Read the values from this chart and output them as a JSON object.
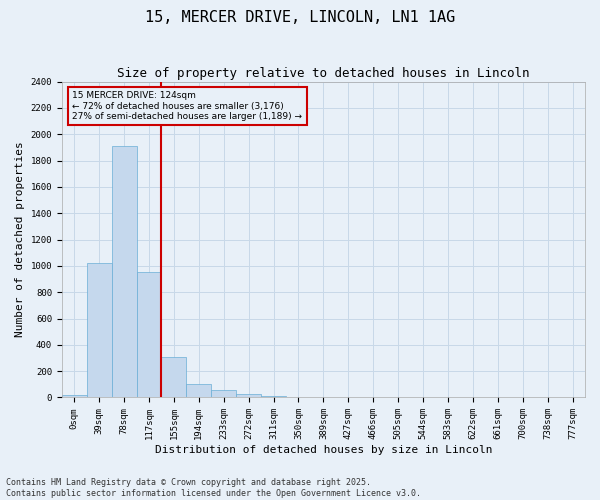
{
  "title": "15, MERCER DRIVE, LINCOLN, LN1 1AG",
  "subtitle": "Size of property relative to detached houses in Lincoln",
  "xlabel": "Distribution of detached houses by size in Lincoln",
  "ylabel": "Number of detached properties",
  "bar_labels": [
    "0sqm",
    "39sqm",
    "78sqm",
    "117sqm",
    "155sqm",
    "194sqm",
    "233sqm",
    "272sqm",
    "311sqm",
    "350sqm",
    "389sqm",
    "427sqm",
    "466sqm",
    "505sqm",
    "544sqm",
    "583sqm",
    "622sqm",
    "661sqm",
    "700sqm",
    "738sqm",
    "777sqm"
  ],
  "bar_values": [
    20,
    1020,
    1910,
    950,
    310,
    100,
    55,
    30,
    10,
    2,
    0,
    0,
    0,
    0,
    0,
    0,
    0,
    0,
    0,
    0,
    0
  ],
  "bar_color": "#c5d8ed",
  "bar_edge_color": "#6aaed6",
  "grid_color": "#c8d8e8",
  "background_color": "#e8f0f8",
  "vline_color": "#cc0000",
  "vline_pos": 3.5,
  "annotation_text": "15 MERCER DRIVE: 124sqm\n← 72% of detached houses are smaller (3,176)\n27% of semi-detached houses are larger (1,189) →",
  "annotation_box_color": "#cc0000",
  "ylim": [
    0,
    2400
  ],
  "yticks": [
    0,
    200,
    400,
    600,
    800,
    1000,
    1200,
    1400,
    1600,
    1800,
    2000,
    2200,
    2400
  ],
  "footer_line1": "Contains HM Land Registry data © Crown copyright and database right 2025.",
  "footer_line2": "Contains public sector information licensed under the Open Government Licence v3.0.",
  "title_fontsize": 11,
  "subtitle_fontsize": 9,
  "tick_fontsize": 6.5,
  "ylabel_fontsize": 8,
  "xlabel_fontsize": 8,
  "footer_fontsize": 6
}
